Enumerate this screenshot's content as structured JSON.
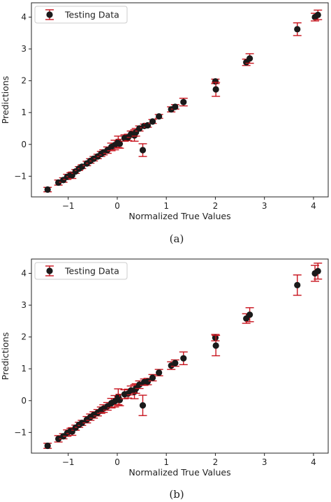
{
  "colors": {
    "marker": "#1a1a1a",
    "errorbar": "#c8141e",
    "axis": "#222222"
  },
  "chart_data": [
    {
      "type": "scatter",
      "caption": "(a)",
      "xlabel": "Normalized True Values",
      "ylabel": "Predictions",
      "xlim": [
        -1.75,
        4.3
      ],
      "ylim": [
        -1.65,
        4.45
      ],
      "xticks": [
        -1,
        0,
        1,
        2,
        3,
        4
      ],
      "xtick_labels": [
        "−1",
        "0",
        "1",
        "2",
        "3",
        "4"
      ],
      "yticks": [
        -1,
        0,
        1,
        2,
        3,
        4
      ],
      "ytick_labels": [
        "−1",
        "0",
        "1",
        "2",
        "3",
        "4"
      ],
      "grid": false,
      "legend": {
        "entries": [
          "Testing Data"
        ],
        "position": "top-left"
      },
      "series": [
        {
          "name": "Testing Data",
          "points": [
            {
              "x": -1.42,
              "y": -1.42,
              "err": 0.07
            },
            {
              "x": -1.2,
              "y": -1.2,
              "err": 0.08
            },
            {
              "x": -1.1,
              "y": -1.12,
              "err": 0.07
            },
            {
              "x": -1.02,
              "y": -1.02,
              "err": 0.08
            },
            {
              "x": -0.95,
              "y": -0.95,
              "err": 0.06
            },
            {
              "x": -0.92,
              "y": -0.97,
              "err": 0.1
            },
            {
              "x": -0.85,
              "y": -0.85,
              "err": 0.06
            },
            {
              "x": -0.78,
              "y": -0.76,
              "err": 0.06
            },
            {
              "x": -0.72,
              "y": -0.7,
              "err": 0.06
            },
            {
              "x": -0.62,
              "y": -0.6,
              "err": 0.07
            },
            {
              "x": -0.55,
              "y": -0.52,
              "err": 0.07
            },
            {
              "x": -0.48,
              "y": -0.45,
              "err": 0.07
            },
            {
              "x": -0.4,
              "y": -0.38,
              "err": 0.07
            },
            {
              "x": -0.33,
              "y": -0.3,
              "err": 0.08
            },
            {
              "x": -0.28,
              "y": -0.25,
              "err": 0.08
            },
            {
              "x": -0.2,
              "y": -0.18,
              "err": 0.1
            },
            {
              "x": -0.12,
              "y": -0.08,
              "err": 0.12
            },
            {
              "x": -0.05,
              "y": -0.02,
              "err": 0.15
            },
            {
              "x": 0.02,
              "y": 0.08,
              "err": 0.18
            },
            {
              "x": 0.05,
              "y": 0.02,
              "err": 0.14
            },
            {
              "x": 0.15,
              "y": 0.2,
              "err": 0.1
            },
            {
              "x": 0.22,
              "y": 0.22,
              "err": 0.1
            },
            {
              "x": 0.28,
              "y": 0.32,
              "err": 0.1
            },
            {
              "x": 0.35,
              "y": 0.28,
              "err": 0.18
            },
            {
              "x": 0.38,
              "y": 0.38,
              "err": 0.12
            },
            {
              "x": 0.45,
              "y": 0.5,
              "err": 0.08
            },
            {
              "x": 0.55,
              "y": 0.58,
              "err": 0.06
            },
            {
              "x": 0.52,
              "y": -0.18,
              "err": 0.2
            },
            {
              "x": 0.62,
              "y": 0.6,
              "err": 0.06
            },
            {
              "x": 0.72,
              "y": 0.72,
              "err": 0.06
            },
            {
              "x": 0.85,
              "y": 0.88,
              "err": 0.06
            },
            {
              "x": 1.1,
              "y": 1.1,
              "err": 0.08
            },
            {
              "x": 1.18,
              "y": 1.18,
              "err": 0.07
            },
            {
              "x": 1.35,
              "y": 1.33,
              "err": 0.12
            },
            {
              "x": 2.0,
              "y": 1.98,
              "err": 0.07
            },
            {
              "x": 2.01,
              "y": 1.73,
              "err": 0.22
            },
            {
              "x": 2.63,
              "y": 2.58,
              "err": 0.1
            },
            {
              "x": 2.7,
              "y": 2.7,
              "err": 0.15
            },
            {
              "x": 3.67,
              "y": 3.62,
              "err": 0.2
            },
            {
              "x": 4.03,
              "y": 4.0,
              "err": 0.12
            },
            {
              "x": 4.09,
              "y": 4.07,
              "err": 0.15
            }
          ]
        }
      ]
    },
    {
      "type": "scatter",
      "caption": "(b)",
      "xlabel": "Normalized True Values",
      "ylabel": "Predictions",
      "xlim": [
        -1.75,
        4.3
      ],
      "ylim": [
        -1.65,
        4.45
      ],
      "xticks": [
        -1,
        0,
        1,
        2,
        3,
        4
      ],
      "xtick_labels": [
        "−1",
        "0",
        "1",
        "2",
        "3",
        "4"
      ],
      "yticks": [
        -1,
        0,
        1,
        2,
        3,
        4
      ],
      "ytick_labels": [
        "−1",
        "0",
        "1",
        "2",
        "3",
        "4"
      ],
      "grid": false,
      "legend": {
        "entries": [
          "Testing Data"
        ],
        "position": "top-left"
      },
      "series": [
        {
          "name": "Testing Data",
          "points": [
            {
              "x": -1.42,
              "y": -1.42,
              "err": 0.08
            },
            {
              "x": -1.2,
              "y": -1.2,
              "err": 0.1
            },
            {
              "x": -1.1,
              "y": -1.12,
              "err": 0.08
            },
            {
              "x": -1.02,
              "y": -1.02,
              "err": 0.1
            },
            {
              "x": -0.95,
              "y": -0.95,
              "err": 0.08
            },
            {
              "x": -0.92,
              "y": -0.97,
              "err": 0.12
            },
            {
              "x": -0.85,
              "y": -0.85,
              "err": 0.08
            },
            {
              "x": -0.78,
              "y": -0.76,
              "err": 0.08
            },
            {
              "x": -0.72,
              "y": -0.7,
              "err": 0.08
            },
            {
              "x": -0.62,
              "y": -0.6,
              "err": 0.1
            },
            {
              "x": -0.55,
              "y": -0.52,
              "err": 0.1
            },
            {
              "x": -0.48,
              "y": -0.45,
              "err": 0.1
            },
            {
              "x": -0.4,
              "y": -0.38,
              "err": 0.1
            },
            {
              "x": -0.33,
              "y": -0.3,
              "err": 0.1
            },
            {
              "x": -0.28,
              "y": -0.25,
              "err": 0.12
            },
            {
              "x": -0.2,
              "y": -0.18,
              "err": 0.12
            },
            {
              "x": -0.12,
              "y": -0.08,
              "err": 0.15
            },
            {
              "x": -0.05,
              "y": -0.02,
              "err": 0.18
            },
            {
              "x": 0.02,
              "y": 0.12,
              "err": 0.25
            },
            {
              "x": 0.05,
              "y": 0.02,
              "err": 0.18
            },
            {
              "x": 0.15,
              "y": 0.2,
              "err": 0.14
            },
            {
              "x": 0.22,
              "y": 0.22,
              "err": 0.14
            },
            {
              "x": 0.28,
              "y": 0.32,
              "err": 0.14
            },
            {
              "x": 0.35,
              "y": 0.28,
              "err": 0.22
            },
            {
              "x": 0.38,
              "y": 0.38,
              "err": 0.15
            },
            {
              "x": 0.45,
              "y": 0.5,
              "err": 0.12
            },
            {
              "x": 0.55,
              "y": 0.58,
              "err": 0.1
            },
            {
              "x": 0.52,
              "y": -0.15,
              "err": 0.32
            },
            {
              "x": 0.62,
              "y": 0.6,
              "err": 0.1
            },
            {
              "x": 0.72,
              "y": 0.72,
              "err": 0.1
            },
            {
              "x": 0.85,
              "y": 0.88,
              "err": 0.1
            },
            {
              "x": 1.1,
              "y": 1.1,
              "err": 0.12
            },
            {
              "x": 1.18,
              "y": 1.18,
              "err": 0.1
            },
            {
              "x": 1.35,
              "y": 1.33,
              "err": 0.2
            },
            {
              "x": 2.0,
              "y": 1.98,
              "err": 0.1
            },
            {
              "x": 2.01,
              "y": 1.73,
              "err": 0.32
            },
            {
              "x": 2.63,
              "y": 2.58,
              "err": 0.15
            },
            {
              "x": 2.7,
              "y": 2.7,
              "err": 0.22
            },
            {
              "x": 3.67,
              "y": 3.63,
              "err": 0.32
            },
            {
              "x": 4.03,
              "y": 4.0,
              "err": 0.25
            },
            {
              "x": 4.09,
              "y": 4.07,
              "err": 0.25
            }
          ]
        }
      ]
    }
  ]
}
